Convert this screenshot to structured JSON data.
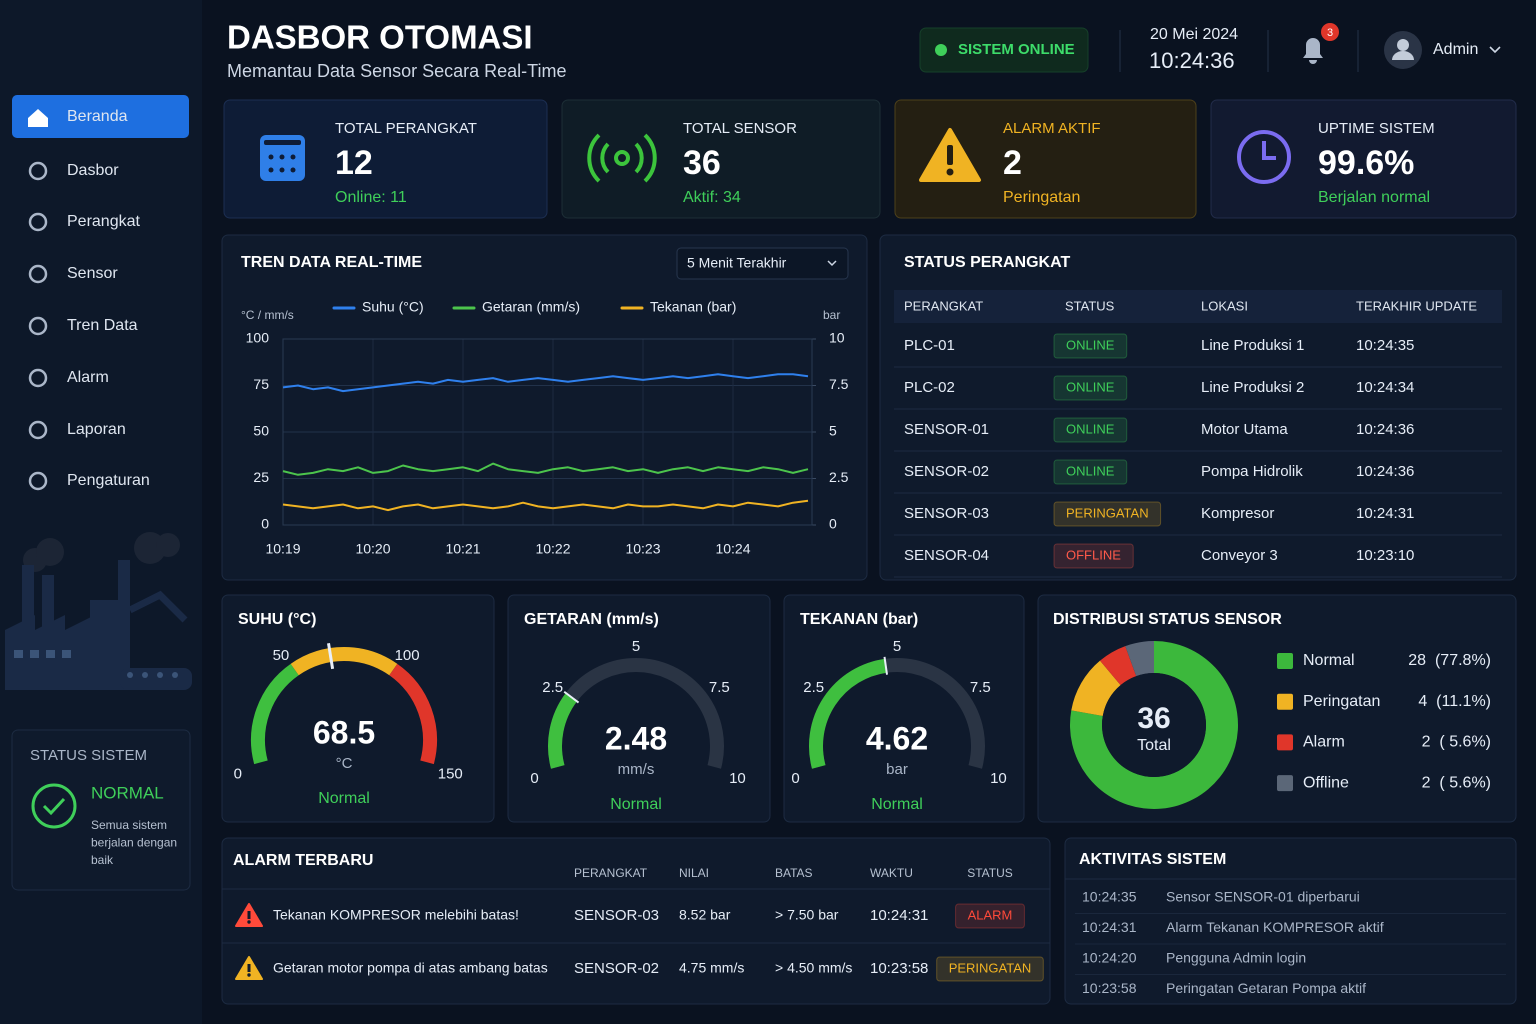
{
  "header": {
    "title": "DASBOR OTOMASI",
    "subtitle": "Memantau Data Sensor Secara Real-Time",
    "status": "SISTEM ONLINE",
    "date": "20 Mei 2024",
    "time": "10:24:36",
    "notifications": 3,
    "user": "Admin"
  },
  "sidebar": {
    "menu": [
      "Beranda",
      "Dasbor",
      "Perangkat",
      "Sensor",
      "Tren Data",
      "Alarm",
      "Laporan",
      "Pengaturan"
    ]
  },
  "system_status": {
    "title": "STATUS SISTEM",
    "state": "NORMAL",
    "description": [
      "Semua sistem",
      "berjalan dengan",
      "baik"
    ]
  },
  "kpis": [
    {
      "label": "TOTAL PERANGKAT",
      "value": 12,
      "note": "Online: 11",
      "color": "#3fcf5a"
    },
    {
      "label": "TOTAL SENSOR",
      "value": 36,
      "note": "Aktif: 34",
      "color": "#3fcf5a"
    },
    {
      "label": "ALARM AKTIF",
      "value": 2,
      "note": "Peringatan",
      "color": "#f0b323"
    },
    {
      "label": "UPTIME SISTEM",
      "value": "99.6%",
      "note": "Berjalan normal",
      "color": "#3fcf5a"
    }
  ],
  "trend_chart": {
    "type": "line",
    "title": "TREN DATA REAL-TIME",
    "range_select": "5 Menit Terakhir",
    "y_label": "°C / mm/s",
    "y2_label": "bar",
    "categories": [
      "10:19",
      null,
      null,
      null,
      null,
      null,
      "10:20",
      null,
      null,
      null,
      null,
      null,
      "10:21",
      null,
      null,
      null,
      null,
      null,
      "10:22",
      null,
      null,
      null,
      null,
      null,
      "10:23",
      null,
      null,
      null,
      null,
      null,
      "10:24",
      null,
      null,
      null,
      null,
      null
    ],
    "ylim": [
      0,
      100
    ],
    "yticks": [
      0,
      25,
      50,
      75,
      100
    ],
    "y2lim": [
      0,
      10
    ],
    "y2ticks": [
      0,
      2.5,
      5,
      7.5,
      10
    ],
    "grid": true,
    "series": [
      {
        "name": "Suhu (°C)",
        "color": "#2f80ed",
        "values": [
          74,
          75,
          73,
          74,
          72,
          73,
          74,
          75,
          76,
          77,
          76,
          78,
          77,
          78,
          79,
          77,
          78,
          79,
          78,
          77,
          78,
          79,
          80,
          79,
          78,
          79,
          80,
          79,
          80,
          81,
          80,
          79,
          80,
          81,
          81,
          80
        ]
      },
      {
        "name": "Getaran (mm/s)",
        "color": "#4cc44c",
        "values": [
          29,
          27,
          28,
          30,
          29,
          31,
          28,
          29,
          32,
          30,
          29,
          30,
          31,
          29,
          33,
          30,
          29,
          28,
          30,
          31,
          29,
          30,
          31,
          29,
          30,
          28,
          30,
          31,
          29,
          31,
          30,
          29,
          31,
          30,
          28,
          30
        ]
      },
      {
        "name": "Tekanan (bar)",
        "color": "#f0b323",
        "axis": "y2",
        "values": [
          1.1,
          1.0,
          0.9,
          1.0,
          1.1,
          0.9,
          1.0,
          0.8,
          1.0,
          1.1,
          0.9,
          1.0,
          1.1,
          1.0,
          0.9,
          1.0,
          1.2,
          1.0,
          0.9,
          1.0,
          1.1,
          1.0,
          0.9,
          1.1,
          1.0,
          1.0,
          1.1,
          1.0,
          0.9,
          1.1,
          1.0,
          1.2,
          1.1,
          1.0,
          1.2,
          1.3
        ]
      }
    ]
  },
  "device_status": {
    "title": "STATUS PERANGKAT",
    "columns": [
      "PERANGKAT",
      "STATUS",
      "LOKASI",
      "TERAKHIR UPDATE"
    ],
    "rows": [
      {
        "device": "PLC-01",
        "status": "ONLINE",
        "status_color": "#3fcf5a",
        "location": "Line Produksi 1",
        "updated": "10:24:35"
      },
      {
        "device": "PLC-02",
        "status": "ONLINE",
        "status_color": "#3fcf5a",
        "location": "Line Produksi 2",
        "updated": "10:24:34"
      },
      {
        "device": "SENSOR-01",
        "status": "ONLINE",
        "status_color": "#3fcf5a",
        "location": "Motor Utama",
        "updated": "10:24:36"
      },
      {
        "device": "SENSOR-02",
        "status": "ONLINE",
        "status_color": "#3fcf5a",
        "location": "Pompa Hidrolik",
        "updated": "10:24:36"
      },
      {
        "device": "SENSOR-03",
        "status": "PERINGATAN",
        "status_color": "#f0b323",
        "location": "Kompresor",
        "updated": "10:24:31"
      },
      {
        "device": "SENSOR-04",
        "status": "OFFLINE",
        "status_color": "#ff5a4a",
        "location": "Conveyor 3",
        "updated": "10:23:10"
      }
    ]
  },
  "gauges": [
    {
      "type": "gauge",
      "title": "SUHU (°C)",
      "value": 68.5,
      "unit": "°C",
      "status": "Normal",
      "ticks": [
        0,
        50,
        100,
        150
      ],
      "zone_colors": [
        "#3fbf3f",
        "#f0b323",
        "#e0362a"
      ]
    },
    {
      "type": "gauge",
      "title": "GETARAN (mm/s)",
      "value": 2.48,
      "unit": "mm/s",
      "status": "Normal",
      "ticks": [
        0,
        2.5,
        5,
        7.5,
        10
      ],
      "color": "#3fbf3f"
    },
    {
      "type": "gauge",
      "title": "TEKANAN (bar)",
      "value": 4.62,
      "unit": "bar",
      "status": "Normal",
      "ticks": [
        0,
        2.5,
        5,
        7.5,
        10
      ],
      "color": "#3fbf3f"
    }
  ],
  "distribution": {
    "type": "pie",
    "title": "DISTRIBUSI STATUS SENSOR",
    "total": 36,
    "total_label": "Total",
    "categories": [
      "Normal",
      "Peringatan",
      "Alarm",
      "Offline"
    ],
    "values": [
      28,
      4,
      2,
      2
    ],
    "value_labels": [
      "28  (77.8%)",
      "4  (11.1%)",
      "2  ( 5.6%)",
      "2  ( 5.6%)"
    ],
    "colors": [
      "#3cb83c",
      "#f0b323",
      "#e0362a",
      "#5b6778"
    ]
  },
  "alarms": {
    "title": "ALARM TERBARU",
    "columns": [
      "PERANGKAT",
      "NILAI",
      "BATAS",
      "WAKTU",
      "STATUS"
    ],
    "rows": [
      {
        "message": "Tekanan KOMPRESOR melebihi batas!",
        "device": "SENSOR-03",
        "value": "8.52 bar",
        "limit": "> 7.50 bar",
        "time": "10:24:31",
        "status": "ALARM",
        "color": "#ff4a3a"
      },
      {
        "message": "Getaran motor pompa di atas ambang batas",
        "device": "SENSOR-02",
        "value": "4.75 mm/s",
        "limit": "> 4.50 mm/s",
        "time": "10:23:58",
        "status": "PERINGATAN",
        "color": "#f0b323"
      }
    ]
  },
  "activity": {
    "title": "AKTIVITAS SISTEM",
    "items": [
      {
        "time": "10:24:35",
        "text": "Sensor SENSOR-01 diperbarui"
      },
      {
        "time": "10:24:31",
        "text": "Alarm Tekanan KOMPRESOR aktif"
      },
      {
        "time": "10:24:20",
        "text": "Pengguna Admin login"
      },
      {
        "time": "10:23:58",
        "text": "Peringatan Getaran Pompa aktif"
      }
    ]
  }
}
